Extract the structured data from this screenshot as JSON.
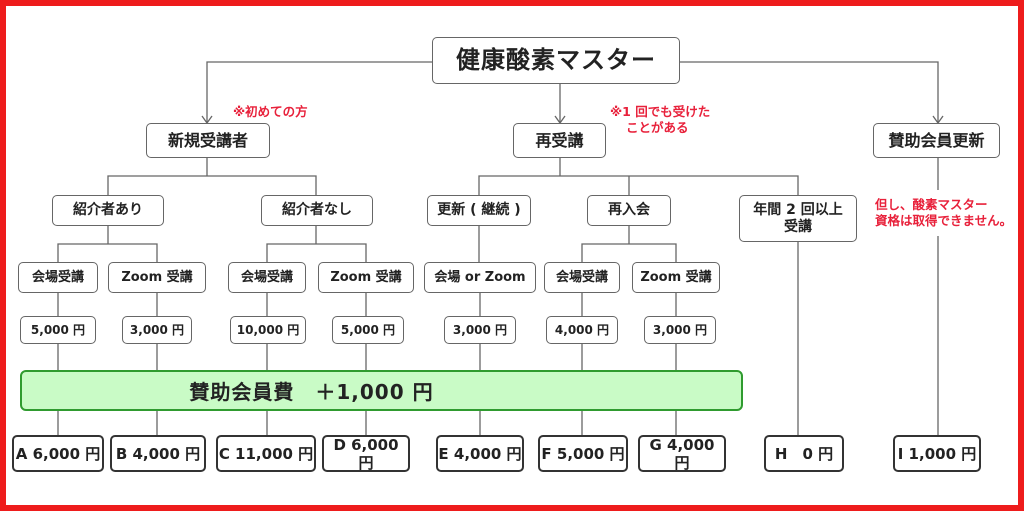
{
  "title": "健康酸素マスター",
  "level1": {
    "new": "新規受講者",
    "repeat": "再受講",
    "support": "賛助会員更新"
  },
  "notes": {
    "new": "※初めての方",
    "repeat_1": "※1 回でも受けた",
    "repeat_2": "ことがある",
    "support_1": "但し、酸素マスター",
    "support_2": "資格は取得できません。"
  },
  "level2": {
    "referral_yes": "紹介者あり",
    "referral_no": "紹介者なし",
    "renewal": "更新 ( 継続 )",
    "rejoin": "再入会",
    "twice_1": "年間 2 回以上",
    "twice_2": "受講"
  },
  "level3": [
    "会場受講",
    "Zoom 受講",
    "会場受講",
    "Zoom 受講",
    "会場 or Zoom",
    "会場受講",
    "Zoom 受講"
  ],
  "prices": [
    "5,000 円",
    "3,000 円",
    "10,000 円",
    "5,000 円",
    "3,000 円",
    "4,000 円",
    "3,000 円"
  ],
  "bar": "賛助会員費　＋1,000 円",
  "totals": [
    "A 6,000 円",
    "B 4,000 円",
    "C 11,000 円",
    "D 6,000 円",
    "E 4,000 円",
    "F 5,000 円",
    "G 4,000 円",
    "H　0 円",
    "I 1,000 円"
  ],
  "colors": {
    "border": "#ee1c1c",
    "note": "#e8213b",
    "bar_fill": "#c9fbc6",
    "bar_border": "#2f9b2f"
  }
}
